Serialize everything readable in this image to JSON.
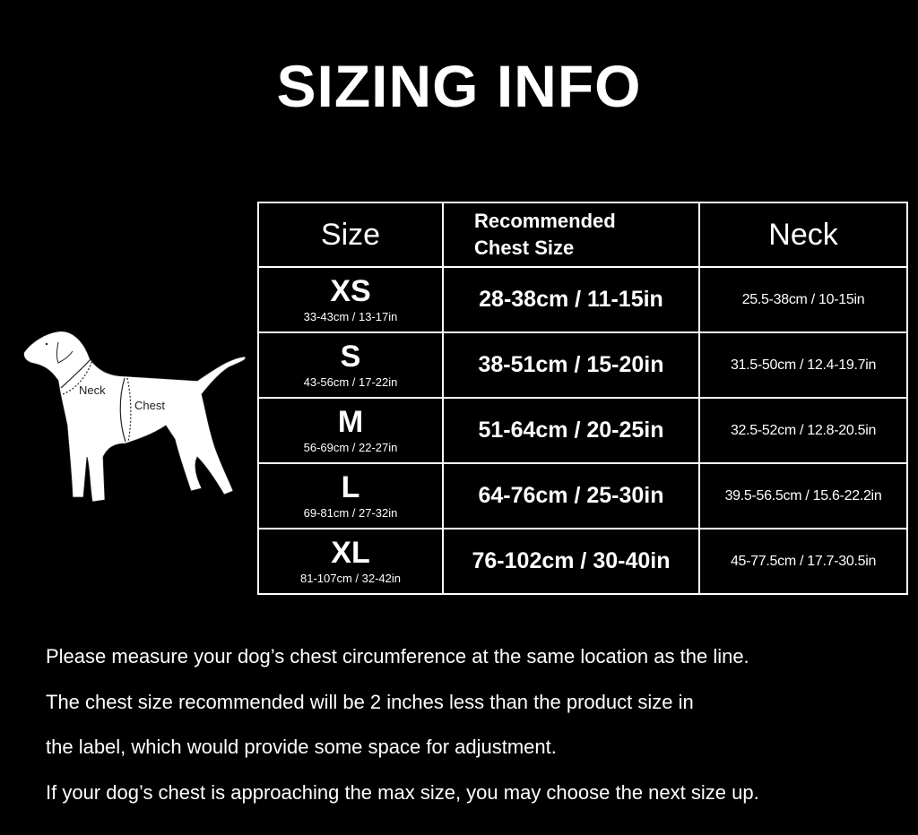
{
  "title": "SIZING INFO",
  "diagram": {
    "neck_label": "Neck",
    "chest_label": "Chest"
  },
  "table": {
    "headers": {
      "size": "Size",
      "chest_line1": "Recommended",
      "chest_line2": "Chest Size",
      "neck": "Neck"
    },
    "rows": [
      {
        "size": "XS",
        "product": "33-43cm / 13-17in",
        "chest": "28-38cm / 11-15in",
        "neck": "25.5-38cm / 10-15in"
      },
      {
        "size": "S",
        "product": "43-56cm / 17-22in",
        "chest": "38-51cm / 15-20in",
        "neck": "31.5-50cm / 12.4-19.7in"
      },
      {
        "size": "M",
        "product": "56-69cm / 22-27in",
        "chest": "51-64cm / 20-25in",
        "neck": "32.5-52cm / 12.8-20.5in"
      },
      {
        "size": "L",
        "product": "69-81cm / 27-32in",
        "chest": "64-76cm / 25-30in",
        "neck": "39.5-56.5cm / 15.6-22.2in"
      },
      {
        "size": "XL",
        "product": "81-107cm / 32-42in",
        "chest": "76-102cm / 30-40in",
        "neck": "45-77.5cm / 17.7-30.5in"
      }
    ]
  },
  "notes": [
    "Please measure your dog’s chest circumference at the same location as the line.",
    "The chest size recommended will be 2 inches less than the product size in",
    "the label, which would provide some space for adjustment.",
    "If your dog’s chest is approaching the max size, you may choose the next size up."
  ]
}
